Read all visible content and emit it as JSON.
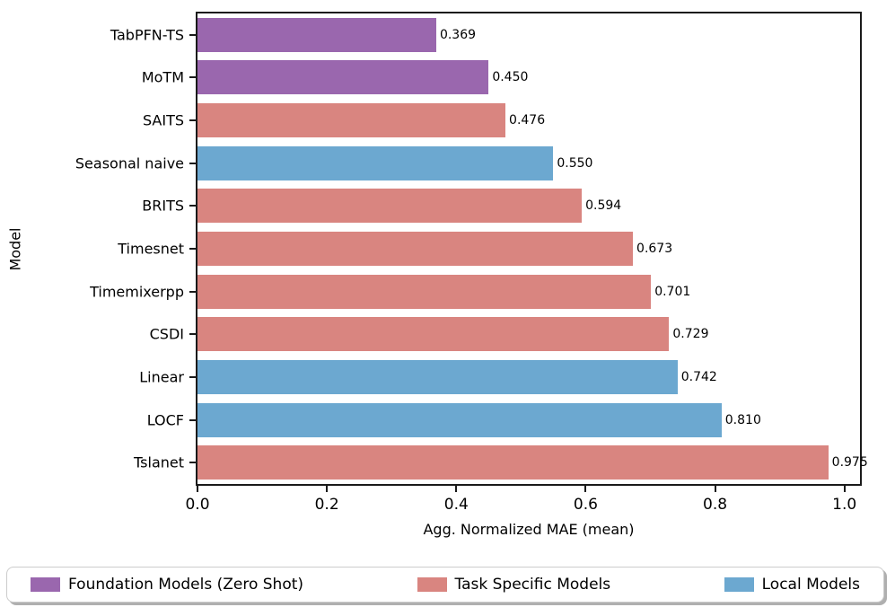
{
  "chart_data": {
    "type": "bar",
    "orientation": "horizontal",
    "title": "",
    "xlabel": "Agg. Normalized MAE (mean)",
    "ylabel": "Model",
    "xlim": [
      0,
      1.024
    ],
    "grid": false,
    "legend_position": "bottom-expanded",
    "categories": [
      "TabPFN-TS",
      "MoTM",
      "SAITS",
      "Seasonal naive",
      "BRITS",
      "Timesnet",
      "Timemixerpp",
      "CSDI",
      "Linear",
      "LOCF",
      "Tslanet"
    ],
    "values": [
      0.369,
      0.45,
      0.476,
      0.55,
      0.594,
      0.673,
      0.701,
      0.729,
      0.742,
      0.81,
      0.975
    ],
    "value_labels": [
      "0.369",
      "0.450",
      "0.476",
      "0.550",
      "0.594",
      "0.673",
      "0.701",
      "0.729",
      "0.742",
      "0.810",
      "0.975"
    ],
    "groups": [
      "foundation",
      "foundation",
      "task",
      "local",
      "task",
      "task",
      "task",
      "task",
      "local",
      "local",
      "task"
    ],
    "colors": {
      "foundation": "#9A67AE",
      "task": "#D98580",
      "local": "#6CA8D0"
    },
    "xticks": [
      0.0,
      0.2,
      0.4,
      0.6,
      0.8,
      1.0
    ],
    "xtick_labels": [
      "0.0",
      "0.2",
      "0.4",
      "0.6",
      "0.8",
      "1.0"
    ],
    "legend": [
      {
        "key": "foundation",
        "label": "Foundation Models (Zero Shot)",
        "color": "#9A67AE"
      },
      {
        "key": "task",
        "label": "Task Specific Models",
        "color": "#D98580"
      },
      {
        "key": "local",
        "label": "Local Models",
        "color": "#6CA8D0"
      }
    ]
  }
}
